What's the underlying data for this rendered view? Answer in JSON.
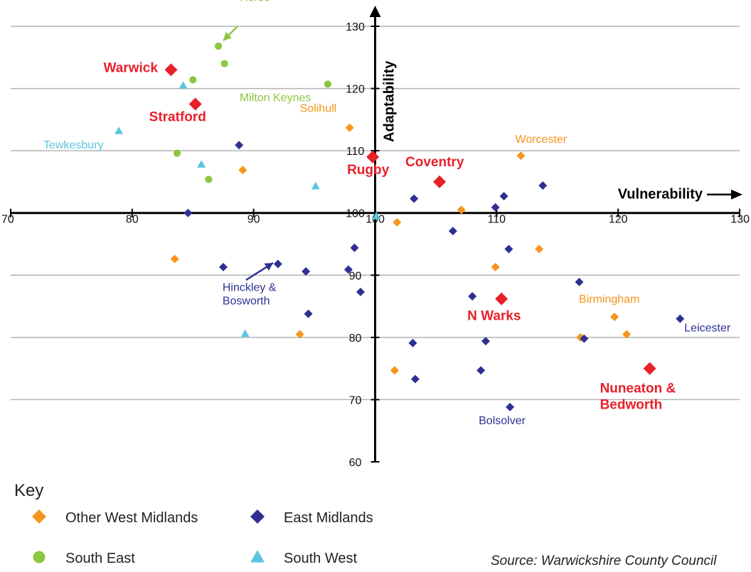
{
  "chart_data": {
    "type": "scatter",
    "xlabel": "Vulnerability",
    "ylabel": "Adaptability",
    "xlim": [
      70,
      130
    ],
    "ylim": [
      60,
      130
    ],
    "x_ticks": [
      70,
      80,
      90,
      100,
      110,
      120,
      130
    ],
    "y_ticks": [
      60,
      70,
      80,
      90,
      100,
      110,
      120,
      130
    ],
    "x_axis_crosses_y_at": 100,
    "y_axis_crosses_x_at": 100,
    "grid": "horizontal",
    "source": "Source: Warwickshire County Council",
    "key_title": "Key",
    "colors": {
      "warwickshire": "#e8202a",
      "other_west_midlands": "#f7941d",
      "east_midlands": "#2e3192",
      "south_east": "#8dc63f",
      "south_west": "#5bc5de",
      "axis": "#000000",
      "grid": "#b3b3b3"
    },
    "key": [
      {
        "label": "Other West Midlands",
        "shape": "diamond",
        "color": "#f7941d"
      },
      {
        "label": "East Midlands",
        "shape": "diamond",
        "color": "#2e3192"
      },
      {
        "label": "South East",
        "shape": "circle",
        "color": "#8dc63f"
      },
      {
        "label": "South West",
        "shape": "triangle",
        "color": "#5bc5de"
      }
    ],
    "series": [
      {
        "group": "warwickshire",
        "shape": "diamond",
        "color": "#e8202a",
        "points": [
          {
            "x": 83.2,
            "y": 123,
            "label": "Warwick"
          },
          {
            "x": 85.2,
            "y": 117.5,
            "label": "Stratford"
          },
          {
            "x": 99.8,
            "y": 109,
            "label": "Rugby"
          },
          {
            "x": 105.3,
            "y": 105,
            "label": "Coventry"
          },
          {
            "x": 110.4,
            "y": 86.2,
            "label": "N Warks"
          },
          {
            "x": 122.6,
            "y": 75,
            "label": "Nuneaton & Bedworth"
          }
        ]
      },
      {
        "group": "other_west_midlands",
        "shape": "diamond",
        "color": "#f7941d",
        "points": [
          {
            "x": 97.9,
            "y": 113.7,
            "label": "Solihull"
          },
          {
            "x": 112,
            "y": 109.2,
            "label": "Worcester"
          },
          {
            "x": 119.7,
            "y": 83.3,
            "label": "Birmingham"
          },
          {
            "x": 89.1,
            "y": 106.9,
            "label": ""
          },
          {
            "x": 107.1,
            "y": 100.5,
            "label": ""
          },
          {
            "x": 101.8,
            "y": 98.5,
            "label": ""
          },
          {
            "x": 113.5,
            "y": 94.2,
            "label": ""
          },
          {
            "x": 83.5,
            "y": 92.6,
            "label": ""
          },
          {
            "x": 109.9,
            "y": 91.3,
            "label": ""
          },
          {
            "x": 93.8,
            "y": 80.5,
            "label": ""
          },
          {
            "x": 120.7,
            "y": 80.5,
            "label": ""
          },
          {
            "x": 116.9,
            "y": 80,
            "label": ""
          },
          {
            "x": 101.6,
            "y": 74.7,
            "label": ""
          }
        ]
      },
      {
        "group": "east_midlands",
        "shape": "diamond",
        "color": "#2e3192",
        "points": [
          {
            "x": 125.1,
            "y": 83,
            "label": "Leicester"
          },
          {
            "x": 111.1,
            "y": 68.8,
            "label": "Bolsolver"
          },
          {
            "x": 92,
            "y": 91.8,
            "label": "Hinckley & Bosworth"
          },
          {
            "x": 88.8,
            "y": 110.9,
            "label": ""
          },
          {
            "x": 113.8,
            "y": 104.4,
            "label": ""
          },
          {
            "x": 110.6,
            "y": 102.7,
            "label": ""
          },
          {
            "x": 103.2,
            "y": 102.3,
            "label": ""
          },
          {
            "x": 109.9,
            "y": 100.9,
            "label": ""
          },
          {
            "x": 84.6,
            "y": 100,
            "label": ""
          },
          {
            "x": 106.4,
            "y": 97.1,
            "label": ""
          },
          {
            "x": 98.3,
            "y": 94.4,
            "label": ""
          },
          {
            "x": 111,
            "y": 94.2,
            "label": ""
          },
          {
            "x": 87.5,
            "y": 91.3,
            "label": ""
          },
          {
            "x": 94.3,
            "y": 90.6,
            "label": ""
          },
          {
            "x": 97.8,
            "y": 90.9,
            "label": ""
          },
          {
            "x": 98.8,
            "y": 87.3,
            "label": ""
          },
          {
            "x": 108,
            "y": 86.6,
            "label": ""
          },
          {
            "x": 116.8,
            "y": 88.9,
            "label": ""
          },
          {
            "x": 94.5,
            "y": 83.8,
            "label": ""
          },
          {
            "x": 117.2,
            "y": 79.8,
            "label": ""
          },
          {
            "x": 109.1,
            "y": 79.4,
            "label": ""
          },
          {
            "x": 103.1,
            "y": 79.1,
            "label": ""
          },
          {
            "x": 108.7,
            "y": 74.7,
            "label": ""
          },
          {
            "x": 103.3,
            "y": 73.3,
            "label": ""
          }
        ]
      },
      {
        "group": "south_east",
        "shape": "circle",
        "color": "#8dc63f",
        "points": [
          {
            "x": 87.1,
            "y": 126.8,
            "label": "Vale of White Horse"
          },
          {
            "x": 96.1,
            "y": 120.7,
            "label": "Milton Keynes"
          },
          {
            "x": 87.6,
            "y": 124,
            "label": ""
          },
          {
            "x": 85,
            "y": 121.4,
            "label": ""
          },
          {
            "x": 83.7,
            "y": 109.6,
            "label": ""
          },
          {
            "x": 86.3,
            "y": 105.4,
            "label": ""
          }
        ]
      },
      {
        "group": "south_west",
        "shape": "triangle",
        "color": "#5bc5de",
        "points": [
          {
            "x": 78.9,
            "y": 113.2,
            "label": "Tewkesbury"
          },
          {
            "x": 84.2,
            "y": 120.5,
            "label": ""
          },
          {
            "x": 85.7,
            "y": 107.8,
            "label": ""
          },
          {
            "x": 95.1,
            "y": 104.3,
            "label": ""
          },
          {
            "x": 100.1,
            "y": 99.5,
            "label": ""
          },
          {
            "x": 89.3,
            "y": 80.6,
            "label": ""
          }
        ]
      }
    ]
  }
}
